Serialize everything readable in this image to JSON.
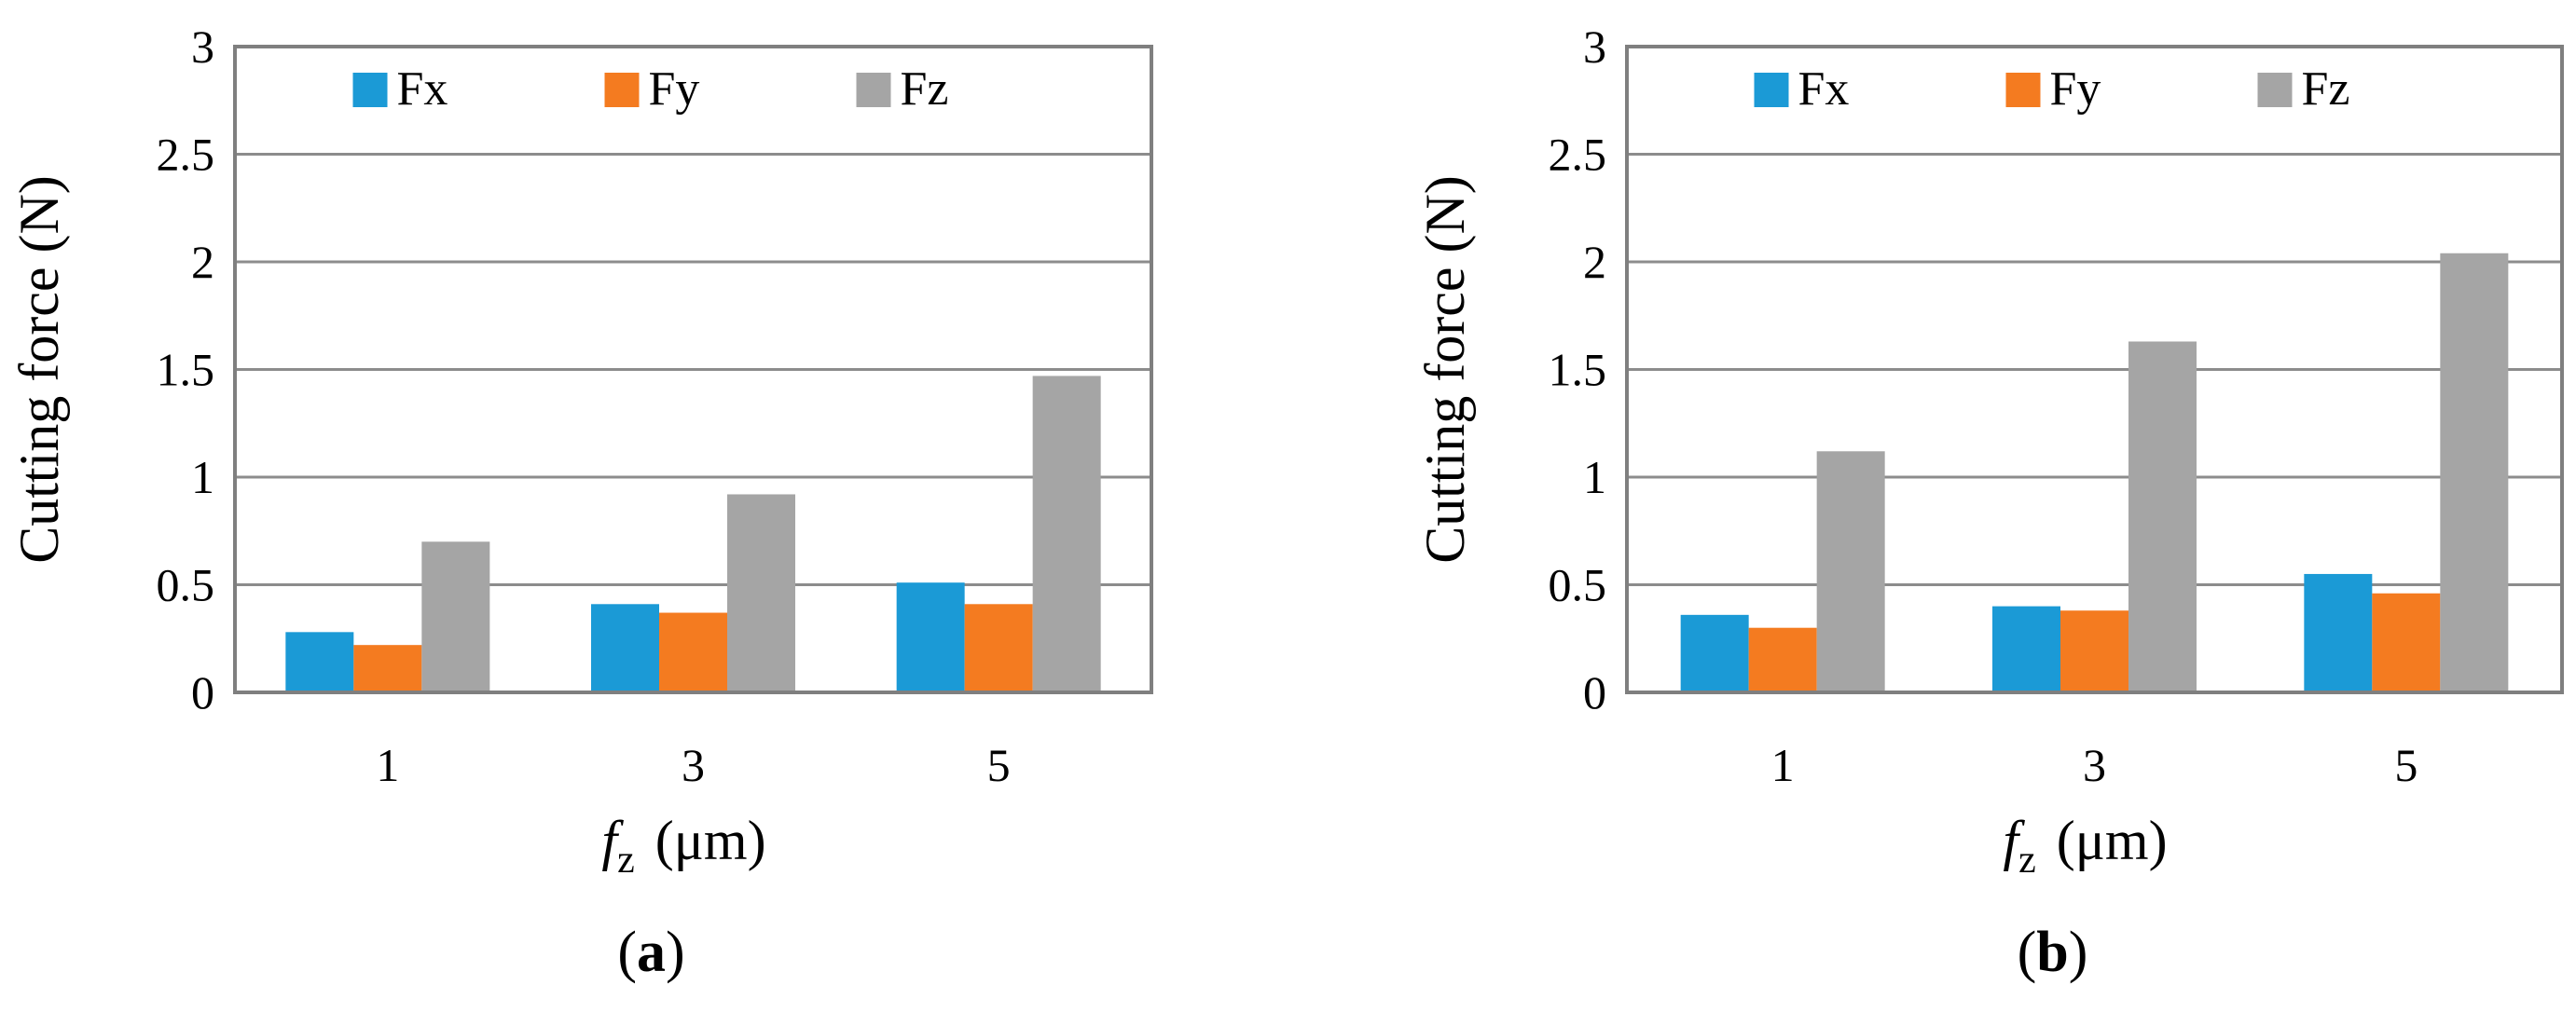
{
  "colors": {
    "Fx": "#1B9AD6",
    "Fy": "#F47B20",
    "Fz": "#A5A5A5",
    "grid": "#8c8c8c",
    "axis": "#7f7f7f"
  },
  "chart_data": [
    {
      "type": "bar",
      "panel_label_letter": "a",
      "categories": [
        "1",
        "3",
        "5"
      ],
      "series": [
        {
          "name": "Fx",
          "values": [
            0.28,
            0.41,
            0.51
          ]
        },
        {
          "name": "Fy",
          "values": [
            0.22,
            0.37,
            0.41
          ]
        },
        {
          "name": "Fz",
          "values": [
            0.7,
            0.92,
            1.47
          ]
        }
      ],
      "xlabel_main": "f",
      "xlabel_sub": "z",
      "xlabel_unit": "(μm)",
      "ylabel": "Cutting force (N)",
      "ylim": [
        0,
        3
      ],
      "yticks": [
        "0",
        "0.5",
        "1",
        "1.5",
        "2",
        "2.5",
        "3"
      ],
      "grid": true,
      "legend_position": "top-center"
    },
    {
      "type": "bar",
      "panel_label_letter": "b",
      "categories": [
        "1",
        "3",
        "5"
      ],
      "series": [
        {
          "name": "Fx",
          "values": [
            0.36,
            0.4,
            0.55
          ]
        },
        {
          "name": "Fy",
          "values": [
            0.3,
            0.38,
            0.46
          ]
        },
        {
          "name": "Fz",
          "values": [
            1.12,
            1.63,
            2.04
          ]
        }
      ],
      "xlabel_main": "f",
      "xlabel_sub": "z",
      "xlabel_unit": "(μm)",
      "ylabel": "Cutting force (N)",
      "ylim": [
        0,
        3
      ],
      "yticks": [
        "0",
        "0.5",
        "1",
        "1.5",
        "2",
        "2.5",
        "3"
      ],
      "grid": true,
      "legend_position": "top-center"
    }
  ]
}
